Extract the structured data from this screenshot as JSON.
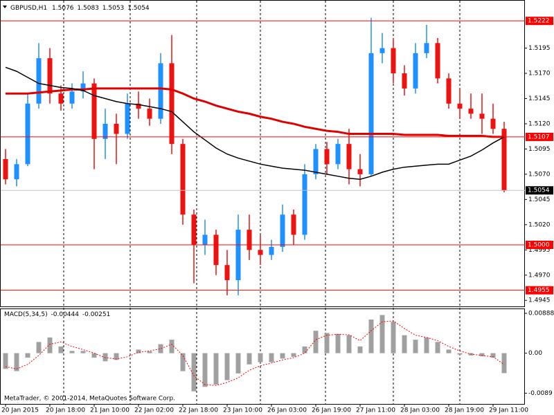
{
  "chart_data": [
    {
      "type": "candlestick",
      "title": "GBPUSD,H1",
      "ohlc_header": [
        1.5076,
        1.5083,
        1.5053,
        1.5054
      ],
      "categories": [
        "20 Jan 2015",
        null,
        null,
        null,
        "20 Jan 18:00",
        null,
        null,
        null,
        "21 Jan 10:00",
        null,
        null,
        null,
        "22 Jan 02:00",
        null,
        null,
        null,
        "22 Jan 18:00",
        null,
        null,
        null,
        "23 Jan 10:00",
        null,
        null,
        null,
        "26 Jan 03:00",
        null,
        null,
        null,
        "26 Jan 19:00",
        null,
        null,
        null,
        "27 Jan 11:00",
        null,
        null,
        null,
        "28 Jan 03:00",
        null,
        null,
        null,
        "28 Jan 19:00",
        null,
        null,
        null,
        "29 Jan 11:00",
        null
      ],
      "open": [
        1.5085,
        1.5065,
        1.508,
        1.514,
        1.5185,
        1.515,
        1.514,
        1.5152,
        1.516,
        1.5105,
        1.512,
        1.511,
        1.514,
        1.5135,
        1.5125,
        1.518,
        1.51,
        1.503,
        1.5,
        1.501,
        1.498,
        1.4965,
        1.5015,
        1.4995,
        1.499,
        1.4998,
        1.503,
        1.501,
        1.507,
        1.5095,
        1.508,
        1.51,
        1.5075,
        1.507,
        1.519,
        1.5195,
        1.517,
        1.5155,
        1.519,
        1.52,
        1.5165,
        1.514,
        1.5135,
        1.513,
        1.5125,
        1.5115
      ],
      "high": [
        1.5095,
        1.5085,
        1.515,
        1.52,
        1.5195,
        1.5158,
        1.516,
        1.5172,
        1.5165,
        1.5135,
        1.513,
        1.515,
        1.5152,
        1.5145,
        1.519,
        1.5208,
        1.5105,
        1.5035,
        1.5025,
        1.5015,
        1.4995,
        1.503,
        1.503,
        1.501,
        1.5005,
        1.504,
        1.5035,
        1.508,
        1.51,
        1.5102,
        1.5105,
        1.5115,
        1.509,
        1.5225,
        1.521,
        1.5205,
        1.5178,
        1.52,
        1.5218,
        1.5205,
        1.517,
        1.5155,
        1.515,
        1.515,
        1.514,
        1.5122
      ],
      "low": [
        1.506,
        1.5058,
        1.5078,
        1.5135,
        1.514,
        1.5133,
        1.5135,
        1.5145,
        1.5075,
        1.5085,
        1.508,
        1.5105,
        1.5125,
        1.5118,
        1.512,
        1.509,
        1.502,
        1.4962,
        1.499,
        1.497,
        1.495,
        1.495,
        1.4985,
        1.498,
        1.4985,
        1.4993,
        1.5,
        1.5005,
        1.5065,
        1.507,
        1.5075,
        1.506,
        1.5058,
        1.5068,
        1.518,
        1.516,
        1.5148,
        1.515,
        1.5185,
        1.516,
        1.5135,
        1.5125,
        1.5125,
        1.511,
        1.511,
        1.5052
      ],
      "close": [
        1.5065,
        1.508,
        1.514,
        1.5185,
        1.515,
        1.514,
        1.5152,
        1.516,
        1.5105,
        1.512,
        1.511,
        1.514,
        1.5135,
        1.5125,
        1.518,
        1.51,
        1.503,
        1.5,
        1.501,
        1.498,
        1.4965,
        1.5015,
        1.4995,
        1.499,
        1.4998,
        1.503,
        1.501,
        1.507,
        1.5095,
        1.508,
        1.51,
        1.5075,
        1.507,
        1.519,
        1.5195,
        1.517,
        1.5155,
        1.519,
        1.52,
        1.5165,
        1.514,
        1.5135,
        1.513,
        1.5125,
        1.5115,
        1.5054
      ],
      "bull_color": "#1e90ff",
      "bear_color": "#ee1111",
      "moving_averages": [
        {
          "color": "#e00000",
          "values": [
            1.515,
            1.515,
            1.515,
            1.5151,
            1.5152,
            1.5153,
            1.5154,
            1.5154,
            1.5155,
            1.5155,
            1.5155,
            1.5155,
            1.5155,
            1.5155,
            1.5155,
            1.5154,
            1.515,
            1.5145,
            1.5142,
            1.5138,
            1.5135,
            1.5132,
            1.513,
            1.5127,
            1.5125,
            1.5122,
            1.512,
            1.5117,
            1.5115,
            1.5113,
            1.5112,
            1.511,
            1.511,
            1.511,
            1.511,
            1.511,
            1.5109,
            1.5109,
            1.5109,
            1.5109,
            1.5108,
            1.5108,
            1.5108,
            1.5108,
            1.5107,
            1.5107
          ]
        },
        {
          "color": "#000000",
          "values": [
            1.5176,
            1.5172,
            1.5166,
            1.516,
            1.5158,
            1.5156,
            1.5155,
            1.5153,
            1.5148,
            1.5145,
            1.5142,
            1.514,
            1.5139,
            1.5137,
            1.5135,
            1.5132,
            1.5122,
            1.5112,
            1.5104,
            1.5096,
            1.509,
            1.5086,
            1.5083,
            1.508,
            1.5078,
            1.5076,
            1.5075,
            1.5074,
            1.5072,
            1.507,
            1.5068,
            1.5066,
            1.5065,
            1.5068,
            1.5072,
            1.5075,
            1.5077,
            1.5078,
            1.5079,
            1.508,
            1.508,
            1.5084,
            1.5088,
            1.5094,
            1.5101,
            1.5107
          ]
        }
      ],
      "levels": [
        1.5222,
        1.5107,
        {
          "value": 1.5,
          "label": "1.5000"
        },
        1.4955
      ],
      "level_color": "#ff0000",
      "last_price": 1.5054,
      "ylim": [
        1.4939,
        1.5242
      ],
      "yticks": [
        1.5195,
        {
          "value": 1.517,
          "label": "1.5170"
        },
        1.5145,
        {
          "value": 1.512,
          "label": "1.5120"
        },
        1.5095,
        {
          "value": 1.507,
          "label": "1.5070"
        },
        1.5045,
        {
          "value": 1.502,
          "label": "1.5020"
        },
        1.4995,
        {
          "value": 1.497,
          "label": "1.4970"
        },
        1.4945
      ],
      "annotation": "MetaTrader, © 2001-2014, MetaQuotes Software Corp."
    },
    {
      "type": "macd",
      "title": "MACD(5,34,5)",
      "readings": [
        -0.00444,
        -0.00251
      ],
      "values": [
        -0.0035,
        -0.004,
        -0.001,
        0.0025,
        0.0035,
        0.0015,
        0.0005,
        0.0005,
        -0.001,
        -0.0018,
        -0.0015,
        0.0,
        0.0008,
        0.0004,
        0.002,
        0.003,
        -0.004,
        -0.0085,
        -0.0075,
        -0.007,
        -0.006,
        -0.0045,
        -0.0025,
        -0.002,
        -0.002,
        -0.0012,
        -0.0008,
        0.0015,
        0.005,
        0.0045,
        0.0043,
        0.004,
        0.0015,
        0.0075,
        0.0085,
        0.007,
        0.004,
        0.003,
        0.0035,
        0.0025,
        0.0008,
        -0.0003,
        -0.0005,
        -0.0007,
        -0.001,
        -0.00444
      ],
      "signal": [
        -0.003,
        -0.0035,
        -0.0025,
        -0.0005,
        0.002,
        0.0025,
        0.0015,
        0.0008,
        0.0,
        -0.001,
        -0.0013,
        -0.0008,
        0.0002,
        0.0005,
        0.001,
        0.002,
        -0.0005,
        -0.005,
        -0.007,
        -0.0072,
        -0.0065,
        -0.0055,
        -0.0038,
        -0.0028,
        -0.0022,
        -0.0015,
        -0.001,
        0.0,
        0.003,
        0.004,
        0.0042,
        0.0041,
        0.0028,
        0.005,
        0.007,
        0.0072,
        0.0055,
        0.004,
        0.0035,
        0.0028,
        0.0015,
        0.0005,
        -0.0002,
        -0.0005,
        -0.0008,
        -0.00251
      ],
      "color": "#a0a0a0",
      "signal_color": "#ff0000",
      "ylim": [
        -0.0113,
        0.0098
      ],
      "yticks": [
        0.00888,
        {
          "value": 0,
          "label": "0.00"
        },
        -0.0089
      ]
    }
  ]
}
